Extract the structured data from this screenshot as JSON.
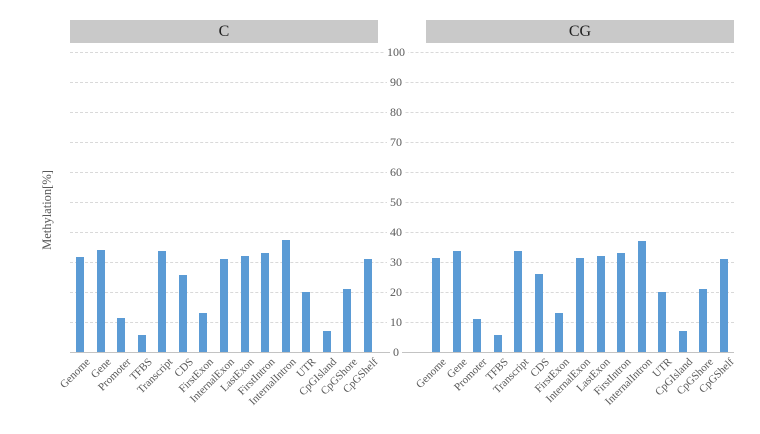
{
  "chart_data": {
    "type": "bar",
    "title": "",
    "ylabel": "Methylation[%]",
    "xlabel": "",
    "ylim": [
      0,
      100
    ],
    "yticks": [
      0,
      10,
      20,
      30,
      40,
      50,
      60,
      70,
      80,
      90,
      100
    ],
    "grid": "horizontal-dashed",
    "legend": "none",
    "categories": [
      "Genome",
      "Gene",
      "Promoter",
      "TFBS",
      "Transcript",
      "CDS",
      "FirstExon",
      "InternalExon",
      "LastExon",
      "FirstIntron",
      "InternalIntron",
      "UTR",
      "CpGIsland",
      "CpGShore",
      "CpGShelf"
    ],
    "panels": [
      {
        "title": "C",
        "values": [
          31.7,
          33.9,
          11.3,
          5.8,
          33.8,
          25.8,
          12.9,
          31.0,
          31.9,
          33.1,
          37.2,
          20.0,
          6.9,
          21.1,
          31.1
        ]
      },
      {
        "title": "CG",
        "values": [
          31.5,
          33.6,
          11.1,
          5.6,
          33.7,
          25.9,
          13.0,
          31.3,
          31.9,
          33.0,
          36.9,
          19.9,
          7.0,
          20.9,
          31.1
        ]
      }
    ]
  },
  "colors": {
    "bar": "#5b9bd5",
    "panel_header_bg": "#c9c9c9",
    "panel_header_text": "#1f1f1f",
    "gridline": "#d9d9d9",
    "axis_line": "#c3c3c3",
    "tick_text": "#595959"
  }
}
